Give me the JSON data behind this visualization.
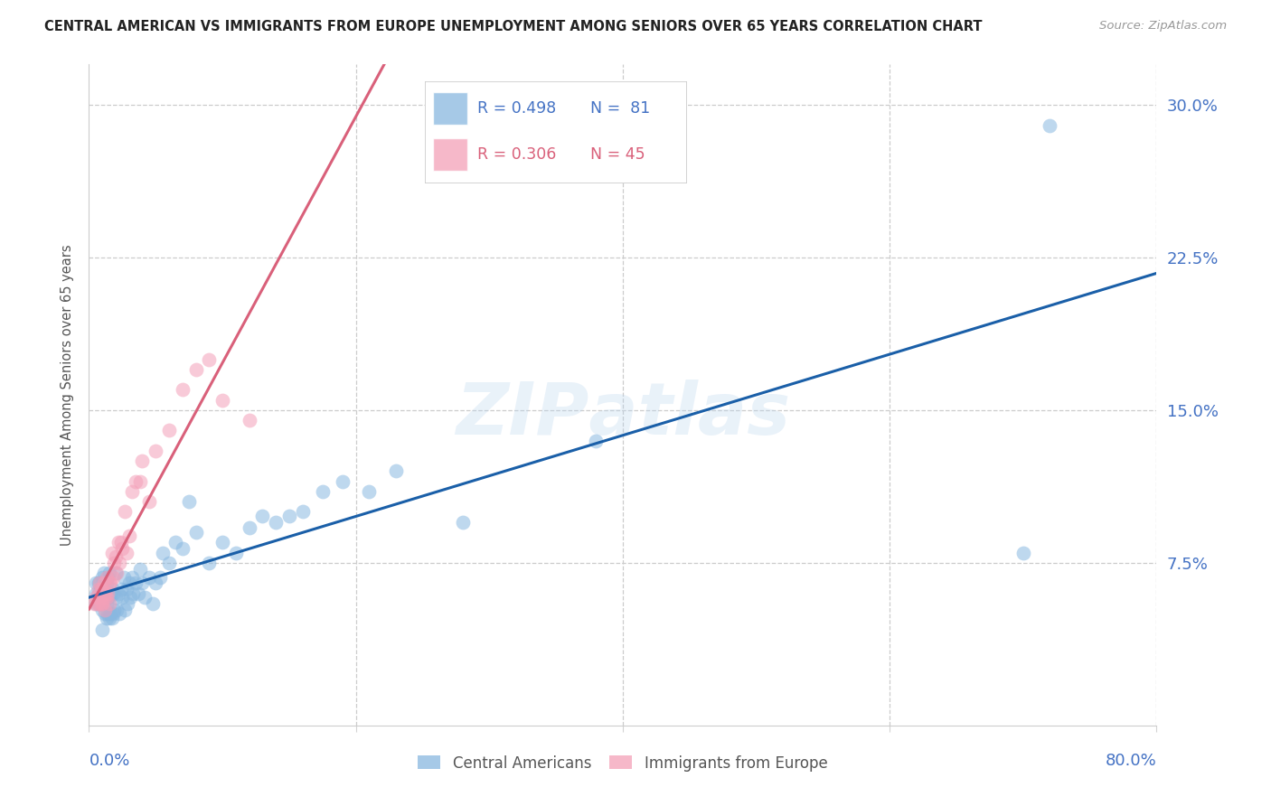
{
  "title": "CENTRAL AMERICAN VS IMMIGRANTS FROM EUROPE UNEMPLOYMENT AMONG SENIORS OVER 65 YEARS CORRELATION CHART",
  "source": "Source: ZipAtlas.com",
  "ylabel": "Unemployment Among Seniors over 65 years",
  "ytick_labels": [
    "7.5%",
    "15.0%",
    "22.5%",
    "30.0%"
  ],
  "ytick_values": [
    0.075,
    0.15,
    0.225,
    0.3
  ],
  "xlim": [
    0.0,
    0.8
  ],
  "ylim": [
    -0.005,
    0.32
  ],
  "legend_r1": "R = 0.498",
  "legend_n1": "N =  81",
  "legend_r2": "R = 0.306",
  "legend_n2": "N = 45",
  "blue_color": "#89b8e0",
  "pink_color": "#f4a0b8",
  "line_blue": "#1a5fa8",
  "line_pink": "#d9607a",
  "ca_x": [
    0.005,
    0.005,
    0.005,
    0.007,
    0.007,
    0.007,
    0.008,
    0.008,
    0.009,
    0.009,
    0.01,
    0.01,
    0.01,
    0.01,
    0.011,
    0.011,
    0.011,
    0.012,
    0.012,
    0.013,
    0.013,
    0.013,
    0.014,
    0.014,
    0.014,
    0.015,
    0.015,
    0.015,
    0.016,
    0.016,
    0.017,
    0.017,
    0.018,
    0.018,
    0.019,
    0.02,
    0.02,
    0.021,
    0.022,
    0.023,
    0.024,
    0.025,
    0.026,
    0.027,
    0.028,
    0.029,
    0.03,
    0.031,
    0.032,
    0.033,
    0.035,
    0.037,
    0.038,
    0.04,
    0.042,
    0.045,
    0.048,
    0.05,
    0.053,
    0.055,
    0.06,
    0.065,
    0.07,
    0.075,
    0.08,
    0.09,
    0.1,
    0.11,
    0.12,
    0.13,
    0.14,
    0.15,
    0.16,
    0.175,
    0.19,
    0.21,
    0.23,
    0.28,
    0.38,
    0.7,
    0.72
  ],
  "ca_y": [
    0.055,
    0.06,
    0.065,
    0.055,
    0.06,
    0.065,
    0.055,
    0.065,
    0.055,
    0.063,
    0.042,
    0.052,
    0.058,
    0.068,
    0.055,
    0.062,
    0.07,
    0.05,
    0.06,
    0.048,
    0.055,
    0.065,
    0.05,
    0.058,
    0.068,
    0.048,
    0.058,
    0.07,
    0.05,
    0.06,
    0.048,
    0.062,
    0.05,
    0.06,
    0.052,
    0.058,
    0.07,
    0.052,
    0.06,
    0.05,
    0.062,
    0.058,
    0.068,
    0.052,
    0.062,
    0.055,
    0.065,
    0.058,
    0.068,
    0.06,
    0.065,
    0.06,
    0.072,
    0.065,
    0.058,
    0.068,
    0.055,
    0.065,
    0.068,
    0.08,
    0.075,
    0.085,
    0.082,
    0.105,
    0.09,
    0.075,
    0.085,
    0.08,
    0.092,
    0.098,
    0.095,
    0.098,
    0.1,
    0.11,
    0.115,
    0.11,
    0.12,
    0.095,
    0.135,
    0.08,
    0.29
  ],
  "eu_x": [
    0.004,
    0.005,
    0.006,
    0.007,
    0.007,
    0.008,
    0.008,
    0.009,
    0.009,
    0.01,
    0.01,
    0.011,
    0.011,
    0.012,
    0.012,
    0.013,
    0.013,
    0.014,
    0.015,
    0.015,
    0.016,
    0.017,
    0.018,
    0.019,
    0.02,
    0.021,
    0.022,
    0.023,
    0.024,
    0.025,
    0.027,
    0.028,
    0.03,
    0.032,
    0.035,
    0.038,
    0.04,
    0.045,
    0.05,
    0.06,
    0.07,
    0.08,
    0.09,
    0.1,
    0.12
  ],
  "eu_y": [
    0.055,
    0.058,
    0.055,
    0.055,
    0.062,
    0.058,
    0.065,
    0.055,
    0.062,
    0.055,
    0.062,
    0.058,
    0.065,
    0.052,
    0.06,
    0.058,
    0.068,
    0.06,
    0.055,
    0.065,
    0.065,
    0.08,
    0.068,
    0.075,
    0.078,
    0.07,
    0.085,
    0.075,
    0.085,
    0.082,
    0.1,
    0.08,
    0.088,
    0.11,
    0.115,
    0.115,
    0.125,
    0.105,
    0.13,
    0.14,
    0.16,
    0.17,
    0.175,
    0.155,
    0.145
  ]
}
